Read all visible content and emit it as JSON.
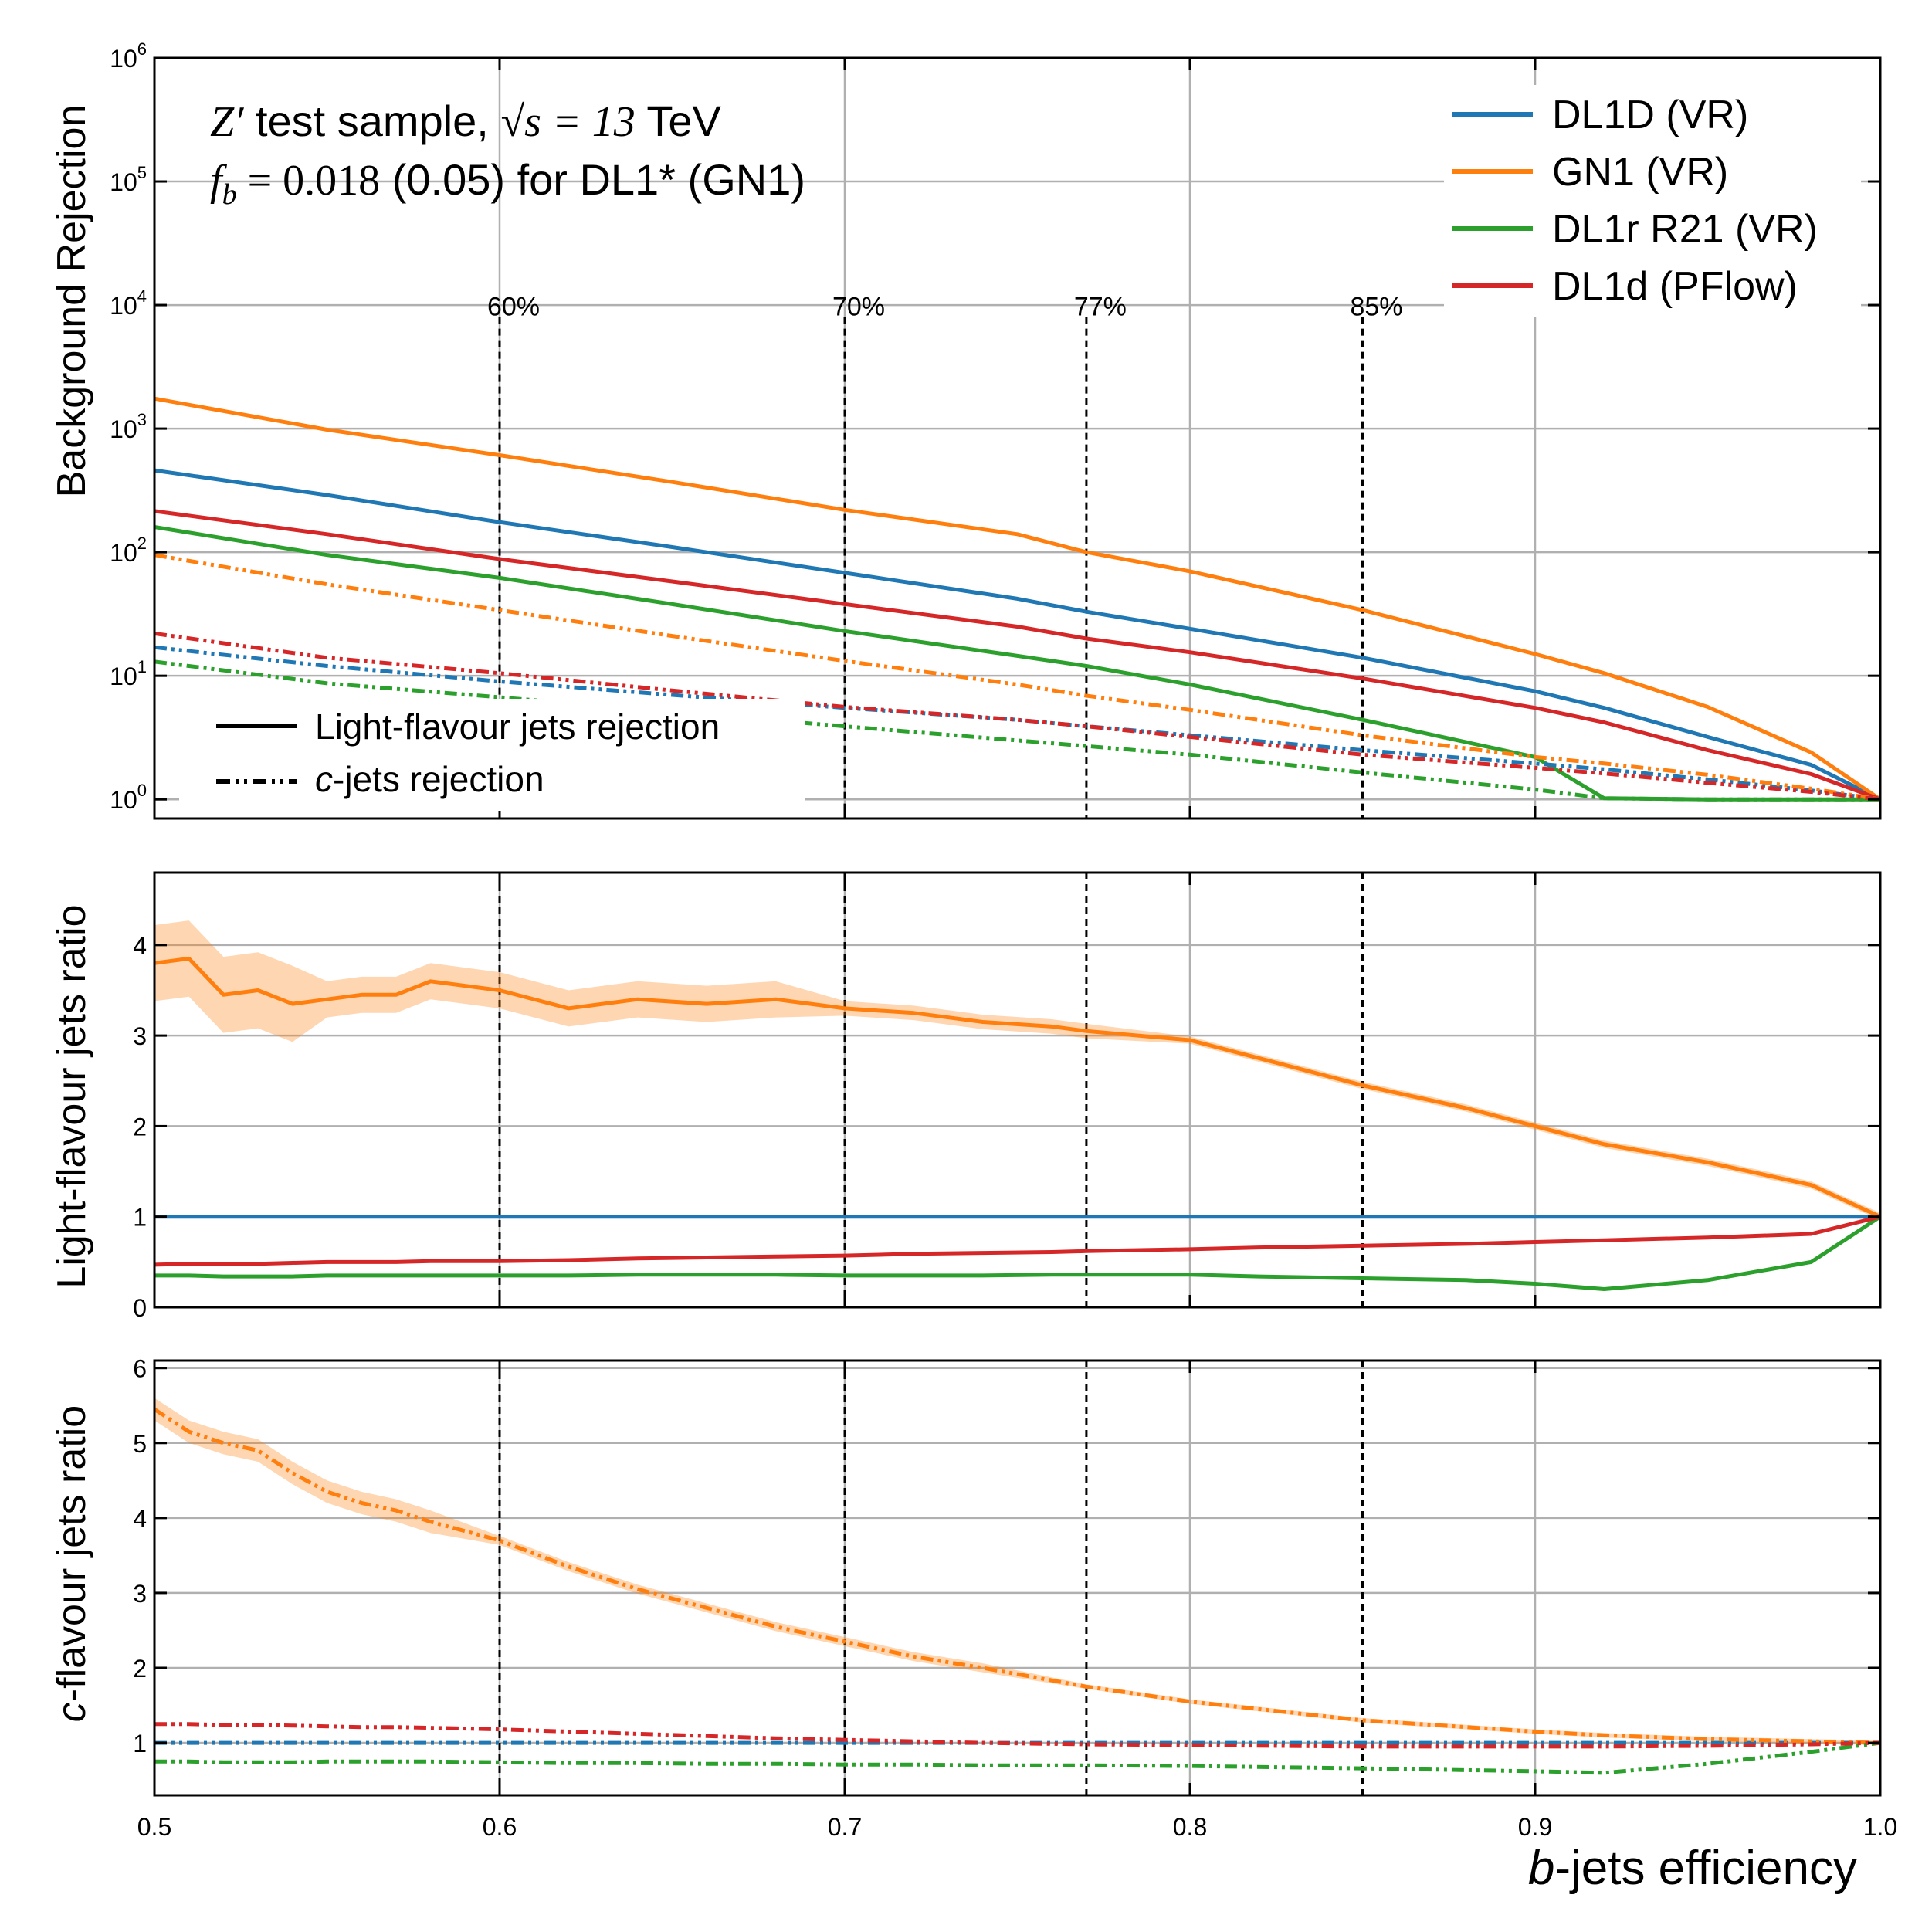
{
  "colors": {
    "DL1D (VR)": "#1f77b4",
    "GN1 (VR)": "#ff7f0e",
    "DL1r R21 (VR)": "#2ca02c",
    "DL1d (PFlow)": "#d62728",
    "wp_lines": "#000000",
    "grid": "#b0b0b0"
  },
  "figure": {
    "xlabel_italic": "b",
    "xlabel_rest": "-jets efficiency",
    "x_ticks": [
      "0.5",
      "0.6",
      "0.7",
      "0.8",
      "0.9",
      "1.0"
    ]
  },
  "annotations": {
    "line1_math": "Z′",
    "line1_text": " test sample, ",
    "line1_sqrt": "√s = 13",
    "line1_unit": " TeV",
    "line2_math": "f",
    "line2_sub": "b",
    "line2_eq": " = 0.018",
    "line2_text": " (0.05) for DL1* (GN1)"
  },
  "legend": {
    "series": [
      "DL1D (VR)",
      "GN1 (VR)",
      "DL1r R21 (VR)",
      "DL1d (PFlow)"
    ],
    "style_solid": "Light-flavour jets rejection",
    "style_dash_italic": "c",
    "style_dash_rest": "-jets rejection"
  },
  "working_points": [
    {
      "x": 0.6,
      "label": "60%"
    },
    {
      "x": 0.7,
      "label": "70%"
    },
    {
      "x": 0.77,
      "label": "77%"
    },
    {
      "x": 0.85,
      "label": "85%"
    }
  ],
  "chart_data": [
    {
      "type": "line",
      "panel": "rejection",
      "ylabel": "Background Rejection",
      "yscale": "log",
      "xlim": [
        0.5,
        1.0
      ],
      "ylim": [
        0.7,
        1000000
      ],
      "y_ticks": [
        "10^0",
        "10^1",
        "10^2",
        "10^3",
        "10^4",
        "10^5",
        "10^6"
      ],
      "grid": true,
      "x": [
        0.5,
        0.55,
        0.6,
        0.65,
        0.7,
        0.75,
        0.77,
        0.8,
        0.85,
        0.9,
        0.92,
        0.95,
        0.98,
        1.0
      ],
      "series": [
        {
          "name": "DL1D (VR)",
          "style": "solid",
          "values": [
            460,
            290,
            175,
            110,
            68,
            42,
            33,
            24,
            14,
            7.5,
            5.5,
            3.2,
            1.9,
            1.0
          ]
        },
        {
          "name": "GN1 (VR)",
          "style": "solid",
          "values": [
            1750,
            980,
            610,
            370,
            220,
            140,
            100,
            70,
            34,
            15,
            10.5,
            5.6,
            2.4,
            1.0
          ]
        },
        {
          "name": "DL1r R21 (VR)",
          "style": "solid",
          "values": [
            160,
            95,
            62,
            38,
            23,
            14.5,
            12,
            8.5,
            4.4,
            2.2,
            1.02,
            1.0,
            1.0,
            1.0
          ]
        },
        {
          "name": "DL1d (PFlow)",
          "style": "solid",
          "values": [
            215,
            140,
            88,
            58,
            38,
            25,
            20,
            15.5,
            9.5,
            5.5,
            4.2,
            2.5,
            1.6,
            1.0
          ]
        },
        {
          "name": "DL1D (VR)",
          "style": "dashdot",
          "values": [
            17,
            12,
            9,
            7,
            5.5,
            4.4,
            3.9,
            3.3,
            2.5,
            1.95,
            1.75,
            1.45,
            1.18,
            1.0
          ]
        },
        {
          "name": "GN1 (VR)",
          "style": "dashdot",
          "values": [
            95,
            55,
            34,
            21,
            13.2,
            8.5,
            6.9,
            5.3,
            3.3,
            2.2,
            1.95,
            1.58,
            1.22,
            1.0
          ]
        },
        {
          "name": "DL1r R21 (VR)",
          "style": "dashdot",
          "values": [
            13,
            8.7,
            6.7,
            5.1,
            3.9,
            3.0,
            2.7,
            2.3,
            1.65,
            1.2,
            1.02,
            1.0,
            1.0,
            1.0
          ]
        },
        {
          "name": "DL1d (PFlow)",
          "style": "dashdot",
          "values": [
            22,
            14,
            10.5,
            7.6,
            5.6,
            4.4,
            3.9,
            3.2,
            2.3,
            1.8,
            1.62,
            1.36,
            1.15,
            1.0
          ]
        }
      ]
    },
    {
      "type": "line",
      "panel": "light_ratio",
      "ylabel": "Light-flavour jets ratio",
      "xlim": [
        0.5,
        1.0
      ],
      "ylim": [
        0,
        4.8
      ],
      "y_ticks": [
        "0",
        "1",
        "2",
        "3",
        "4"
      ],
      "grid": true,
      "x": [
        0.5,
        0.51,
        0.52,
        0.53,
        0.54,
        0.55,
        0.56,
        0.57,
        0.58,
        0.6,
        0.62,
        0.64,
        0.66,
        0.68,
        0.7,
        0.72,
        0.74,
        0.76,
        0.77,
        0.8,
        0.82,
        0.85,
        0.88,
        0.9,
        0.92,
        0.95,
        0.98,
        1.0
      ],
      "series": [
        {
          "name": "DL1D (VR)",
          "style": "solid",
          "values": [
            1,
            1,
            1,
            1,
            1,
            1,
            1,
            1,
            1,
            1,
            1,
            1,
            1,
            1,
            1,
            1,
            1,
            1,
            1,
            1,
            1,
            1,
            1,
            1,
            1,
            1,
            1,
            1
          ]
        },
        {
          "name": "GN1 (VR)",
          "style": "solid",
          "values": [
            3.8,
            3.85,
            3.45,
            3.5,
            3.35,
            3.4,
            3.45,
            3.45,
            3.6,
            3.5,
            3.3,
            3.4,
            3.35,
            3.4,
            3.3,
            3.25,
            3.15,
            3.1,
            3.05,
            2.95,
            2.75,
            2.45,
            2.2,
            2.0,
            1.8,
            1.6,
            1.35,
            1.0
          ]
        },
        {
          "name": "DL1r R21 (VR)",
          "style": "solid",
          "values": [
            0.35,
            0.35,
            0.34,
            0.34,
            0.34,
            0.35,
            0.35,
            0.35,
            0.35,
            0.35,
            0.35,
            0.36,
            0.36,
            0.36,
            0.35,
            0.35,
            0.35,
            0.36,
            0.36,
            0.36,
            0.34,
            0.32,
            0.3,
            0.26,
            0.2,
            0.3,
            0.5,
            1.0
          ]
        },
        {
          "name": "DL1d (PFlow)",
          "style": "solid",
          "values": [
            0.47,
            0.48,
            0.48,
            0.48,
            0.49,
            0.5,
            0.5,
            0.5,
            0.51,
            0.51,
            0.52,
            0.54,
            0.55,
            0.56,
            0.57,
            0.59,
            0.6,
            0.61,
            0.62,
            0.64,
            0.66,
            0.68,
            0.7,
            0.72,
            0.74,
            0.77,
            0.81,
            1.0
          ]
        }
      ]
    },
    {
      "type": "line",
      "panel": "c_ratio",
      "ylabel_italic": "c",
      "ylabel_rest": "-flavour jets ratio",
      "xlim": [
        0.5,
        1.0
      ],
      "ylim": [
        0.3,
        6.1
      ],
      "y_ticks": [
        "1",
        "2",
        "3",
        "4",
        "5",
        "6"
      ],
      "grid": true,
      "x": [
        0.5,
        0.51,
        0.52,
        0.53,
        0.54,
        0.55,
        0.56,
        0.57,
        0.58,
        0.6,
        0.62,
        0.64,
        0.66,
        0.68,
        0.7,
        0.72,
        0.74,
        0.77,
        0.8,
        0.85,
        0.9,
        0.92,
        0.95,
        0.98,
        1.0
      ],
      "series": [
        {
          "name": "DL1D (VR)",
          "style": "dashdot",
          "values": [
            1,
            1,
            1,
            1,
            1,
            1,
            1,
            1,
            1,
            1,
            1,
            1,
            1,
            1,
            1,
            1,
            1,
            1,
            1,
            1,
            1,
            1,
            1,
            1,
            1
          ]
        },
        {
          "name": "GN1 (VR)",
          "style": "dashdot",
          "values": [
            5.45,
            5.15,
            5.0,
            4.9,
            4.6,
            4.35,
            4.2,
            4.1,
            3.95,
            3.7,
            3.35,
            3.05,
            2.8,
            2.55,
            2.35,
            2.15,
            2.0,
            1.75,
            1.55,
            1.3,
            1.15,
            1.1,
            1.05,
            1.02,
            1.0
          ]
        },
        {
          "name": "DL1r R21 (VR)",
          "style": "dashdot",
          "values": [
            0.75,
            0.75,
            0.74,
            0.74,
            0.74,
            0.75,
            0.75,
            0.75,
            0.75,
            0.74,
            0.73,
            0.73,
            0.72,
            0.72,
            0.71,
            0.71,
            0.7,
            0.7,
            0.69,
            0.66,
            0.62,
            0.6,
            0.72,
            0.88,
            1.0
          ]
        },
        {
          "name": "DL1d (PFlow)",
          "style": "dashdot",
          "values": [
            1.25,
            1.25,
            1.24,
            1.24,
            1.23,
            1.22,
            1.21,
            1.21,
            1.2,
            1.18,
            1.15,
            1.12,
            1.09,
            1.06,
            1.04,
            1.02,
            1.0,
            0.98,
            0.97,
            0.95,
            0.95,
            0.95,
            0.96,
            0.98,
            1.0
          ]
        }
      ]
    }
  ]
}
